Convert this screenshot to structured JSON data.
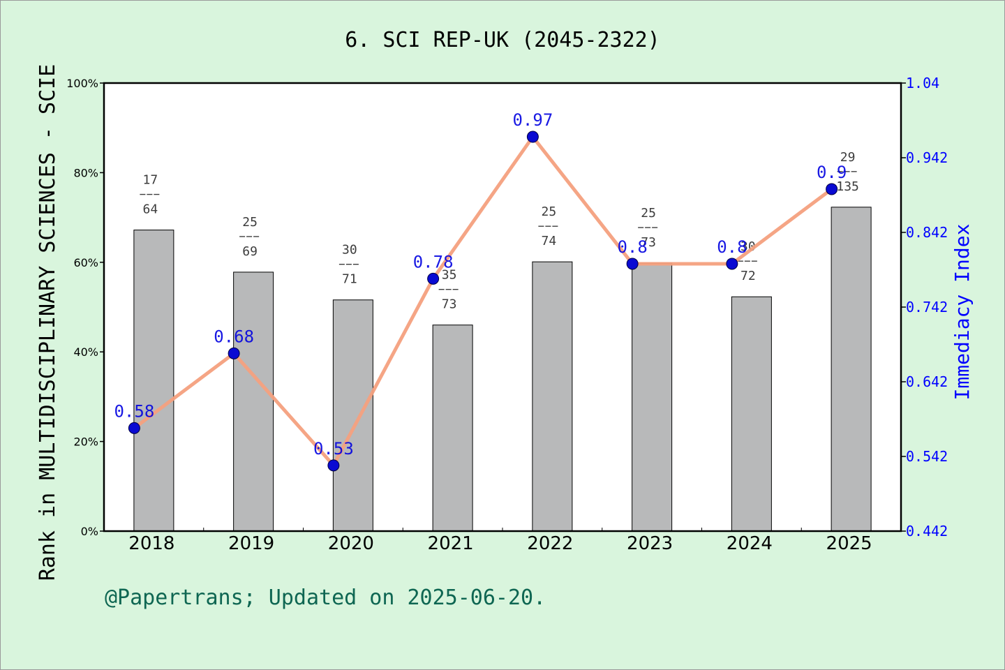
{
  "chart_data": {
    "type": "bar+line",
    "title": "6. SCI REP-UK (2045-2322)",
    "categories": [
      "2018",
      "2019",
      "2020",
      "2021",
      "2022",
      "2023",
      "2024",
      "2025"
    ],
    "bars": {
      "values_percent": [
        67.2,
        57.8,
        51.6,
        46.0,
        60.1,
        59.8,
        52.3,
        72.3
      ],
      "rank_labels": [
        {
          "rank": "17",
          "total": "64"
        },
        {
          "rank": "25",
          "total": "69"
        },
        {
          "rank": "30",
          "total": "71"
        },
        {
          "rank": "35",
          "total": "73"
        },
        {
          "rank": "25",
          "total": "74"
        },
        {
          "rank": "25",
          "total": "73"
        },
        {
          "rank": "30",
          "total": "72"
        },
        {
          "rank": "29",
          "total": "135"
        }
      ],
      "color": "#b8b9ba"
    },
    "line": {
      "values": [
        0.58,
        0.68,
        0.53,
        0.78,
        0.97,
        0.8,
        0.8,
        0.9
      ],
      "labels": [
        "0.58",
        "0.68",
        "0.53",
        "0.78",
        "0.97",
        "0.8",
        "0.8",
        "0.9"
      ],
      "color": "#f4a07e",
      "marker_color": "#0a0ad2"
    },
    "y_left": {
      "label": "Rank in MULTIDISCIPLINARY SCIENCES - SCIE",
      "ticks": [
        "0%",
        "20%",
        "40%",
        "60%",
        "80%",
        "100%"
      ],
      "range": [
        0,
        100
      ]
    },
    "y_right": {
      "label": "Immediacy Index",
      "ticks": [
        "0.442",
        "0.542",
        "0.642",
        "0.742",
        "0.842",
        "0.942",
        "1.04"
      ],
      "range": [
        0.442,
        1.042
      ],
      "color": "#0000ff"
    },
    "grid": false,
    "legend": "none"
  },
  "footer": {
    "credit": "@Papertrans; Updated on 2025-06-20."
  }
}
